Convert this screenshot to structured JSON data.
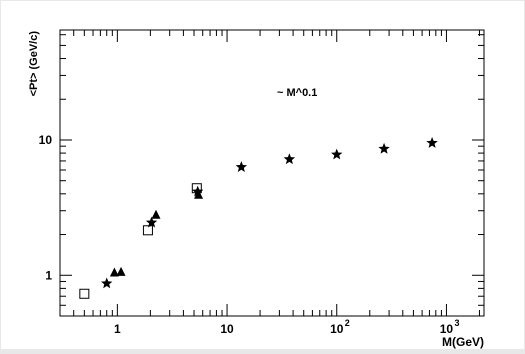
{
  "chart_data": {
    "type": "scatter",
    "title": "",
    "xlabel": "M(GeV)",
    "ylabel": "<Pt> (GeV/c)",
    "x_scale": "log",
    "y_scale": "log",
    "xlim": [
      0.3,
      2200
    ],
    "ylim": [
      0.5,
      65
    ],
    "grid": false,
    "annotation": "~ M^0.1",
    "x_tick_labels": [
      {
        "value": 1,
        "base": "1",
        "exp": ""
      },
      {
        "value": 10,
        "base": "10",
        "exp": ""
      },
      {
        "value": 100,
        "base": "10",
        "exp": "2"
      },
      {
        "value": 1000,
        "base": "10",
        "exp": "3"
      }
    ],
    "y_tick_labels": [
      {
        "value": 1,
        "label": "1"
      },
      {
        "value": 10,
        "label": "10"
      }
    ],
    "series": [
      {
        "marker": "open-square",
        "color": "#000000",
        "points": [
          {
            "x": 0.5,
            "y": 0.73
          },
          {
            "x": 1.9,
            "y": 2.15
          },
          {
            "x": 5.3,
            "y": 4.4
          }
        ]
      },
      {
        "marker": "filled-triangle",
        "color": "#000000",
        "points": [
          {
            "x": 0.94,
            "y": 1.04
          },
          {
            "x": 1.08,
            "y": 1.05
          },
          {
            "x": 2.25,
            "y": 2.78
          },
          {
            "x": 5.5,
            "y": 3.9
          }
        ]
      },
      {
        "marker": "filled-star",
        "color": "#000000",
        "points": [
          {
            "x": 0.8,
            "y": 0.87
          },
          {
            "x": 2.05,
            "y": 2.45
          },
          {
            "x": 5.4,
            "y": 4.15
          },
          {
            "x": 13.5,
            "y": 6.3
          },
          {
            "x": 37,
            "y": 7.2
          },
          {
            "x": 100,
            "y": 7.8
          },
          {
            "x": 270,
            "y": 8.6
          },
          {
            "x": 740,
            "y": 9.5
          }
        ]
      }
    ]
  }
}
